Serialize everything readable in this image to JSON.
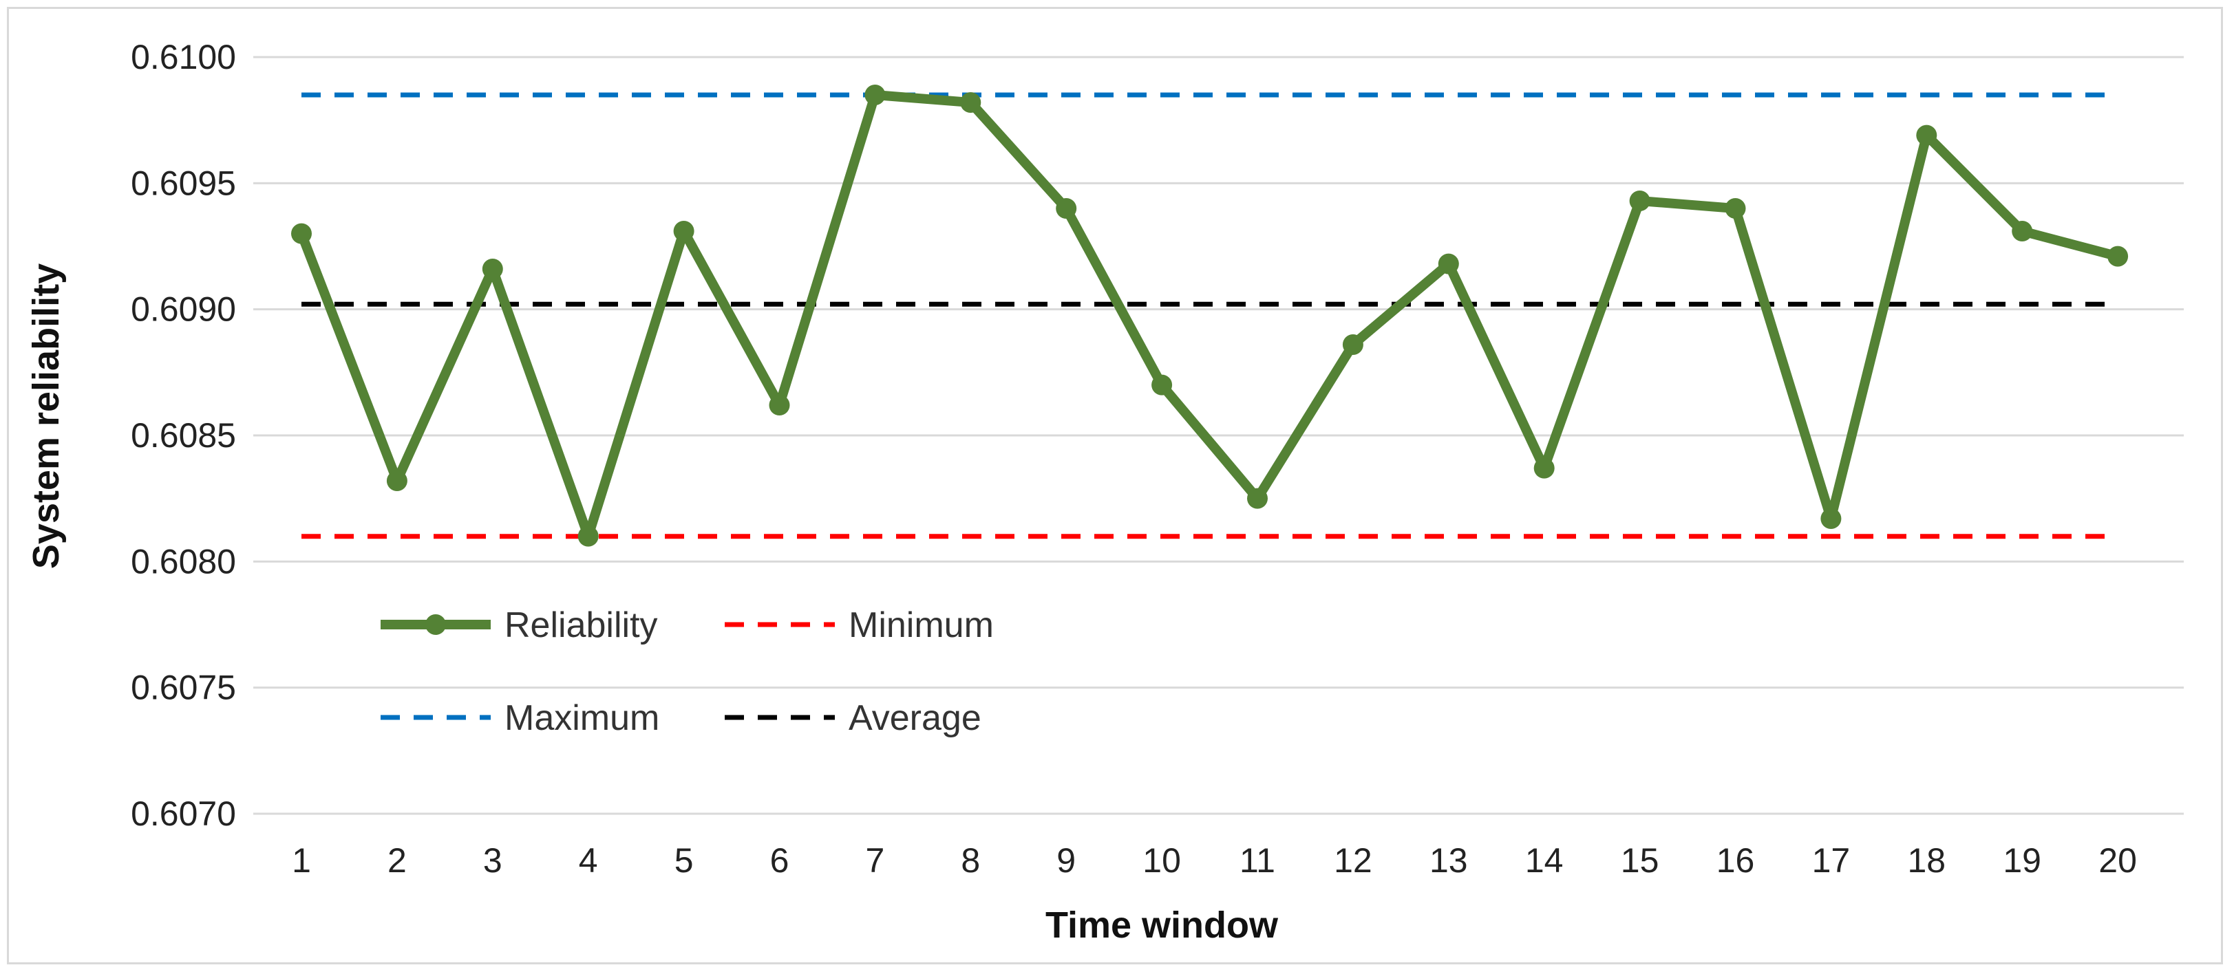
{
  "chart_data": {
    "type": "line",
    "title": "",
    "xlabel": "Time window",
    "ylabel": "System reliability",
    "x": [
      1,
      2,
      3,
      4,
      5,
      6,
      7,
      8,
      9,
      10,
      11,
      12,
      13,
      14,
      15,
      16,
      17,
      18,
      19,
      20
    ],
    "x_tick_labels": [
      "1",
      "2",
      "3",
      "4",
      "5",
      "6",
      "7",
      "8",
      "9",
      "10",
      "11",
      "12",
      "13",
      "14",
      "15",
      "16",
      "17",
      "18",
      "19",
      "20"
    ],
    "ylim": [
      0.607,
      0.61
    ],
    "y_ticks": [
      0.607,
      0.6075,
      0.608,
      0.6085,
      0.609,
      0.6095,
      0.61
    ],
    "y_tick_labels": [
      "0.6070",
      "0.6075",
      "0.6080",
      "0.6085",
      "0.6090",
      "0.6095",
      "0.6100"
    ],
    "grid": "horizontal",
    "legend_position": "lower-left",
    "series": [
      {
        "name": "Reliability",
        "style": "solid-with-markers",
        "color": "#548235",
        "values": [
          0.6093,
          0.60832,
          0.60916,
          0.6081,
          0.60931,
          0.60862,
          0.60985,
          0.60982,
          0.6094,
          0.6087,
          0.60825,
          0.60886,
          0.60918,
          0.60837,
          0.60943,
          0.6094,
          0.60817,
          0.60969,
          0.60931,
          0.60921
        ]
      },
      {
        "name": "Minimum",
        "style": "dashed",
        "color": "#ff0000",
        "values": [
          0.6081,
          0.6081,
          0.6081,
          0.6081,
          0.6081,
          0.6081,
          0.6081,
          0.6081,
          0.6081,
          0.6081,
          0.6081,
          0.6081,
          0.6081,
          0.6081,
          0.6081,
          0.6081,
          0.6081,
          0.6081,
          0.6081,
          0.6081
        ]
      },
      {
        "name": "Maximum",
        "style": "dashed",
        "color": "#0070c0",
        "values": [
          0.60985,
          0.60985,
          0.60985,
          0.60985,
          0.60985,
          0.60985,
          0.60985,
          0.60985,
          0.60985,
          0.60985,
          0.60985,
          0.60985,
          0.60985,
          0.60985,
          0.60985,
          0.60985,
          0.60985,
          0.60985,
          0.60985,
          0.60985
        ]
      },
      {
        "name": "Average",
        "style": "dashed",
        "color": "#000000",
        "values": [
          0.60902,
          0.60902,
          0.60902,
          0.60902,
          0.60902,
          0.60902,
          0.60902,
          0.60902,
          0.60902,
          0.60902,
          0.60902,
          0.60902,
          0.60902,
          0.60902,
          0.60902,
          0.60902,
          0.60902,
          0.60902,
          0.60902,
          0.60902
        ]
      }
    ]
  },
  "colors": {
    "gridline": "#d9d9d9",
    "frame": "#d9d9d9"
  }
}
